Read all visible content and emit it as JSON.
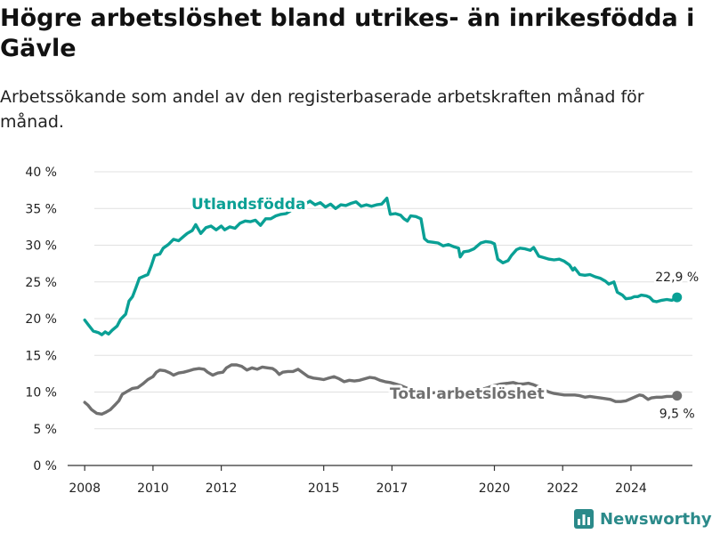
{
  "title": "Högre arbetslöshet bland utrikes- än inrikesfödda i Gävle",
  "subtitle": "Arbetssökande som andel av den registerbaserade arbetskraften månad för månad.",
  "brand": "Newsworthy",
  "colors": {
    "foreign": "#0aa095",
    "total": "#707070",
    "grid": "#e0e0e0",
    "axis": "#333333"
  },
  "chart_data": {
    "type": "line",
    "ylim": [
      0,
      40
    ],
    "xlim": [
      2007.5,
      2025.8
    ],
    "y_ticks": [
      {
        "value": 0,
        "label": "0 %"
      },
      {
        "value": 5,
        "label": "5 %"
      },
      {
        "value": 10,
        "label": "10 %"
      },
      {
        "value": 15,
        "label": "15 %"
      },
      {
        "value": 20,
        "label": "20 %"
      },
      {
        "value": 25,
        "label": "25 %"
      },
      {
        "value": 30,
        "label": "30 %"
      },
      {
        "value": 35,
        "label": "35 %"
      },
      {
        "value": 40,
        "label": "40 %"
      }
    ],
    "x_ticks": [
      {
        "value": 2008,
        "label": "2008"
      },
      {
        "value": 2010,
        "label": "2010"
      },
      {
        "value": 2012,
        "label": "2012"
      },
      {
        "value": 2015,
        "label": "2015"
      },
      {
        "value": 2017,
        "label": "2017"
      },
      {
        "value": 2020,
        "label": "2020"
      },
      {
        "value": 2022,
        "label": "2022"
      },
      {
        "value": 2024,
        "label": "2024"
      }
    ],
    "series": [
      {
        "name": "Utlandsfödda",
        "color": "#0aa095",
        "end_label": "22,9 %",
        "points": [
          [
            2008.0,
            19.8
          ],
          [
            2008.1,
            19.2
          ],
          [
            2008.25,
            18.3
          ],
          [
            2008.4,
            18.1
          ],
          [
            2008.5,
            17.8
          ],
          [
            2008.6,
            18.2
          ],
          [
            2008.7,
            17.9
          ],
          [
            2008.8,
            18.4
          ],
          [
            2008.95,
            19.0
          ],
          [
            2009.05,
            19.9
          ],
          [
            2009.2,
            20.6
          ],
          [
            2009.3,
            22.4
          ],
          [
            2009.4,
            23.0
          ],
          [
            2009.5,
            24.2
          ],
          [
            2009.6,
            25.5
          ],
          [
            2009.75,
            25.8
          ],
          [
            2009.85,
            26.0
          ],
          [
            2009.95,
            27.2
          ],
          [
            2010.05,
            28.6
          ],
          [
            2010.2,
            28.8
          ],
          [
            2010.3,
            29.6
          ],
          [
            2010.45,
            30.1
          ],
          [
            2010.6,
            30.8
          ],
          [
            2010.75,
            30.6
          ],
          [
            2010.9,
            31.2
          ],
          [
            2011.0,
            31.6
          ],
          [
            2011.15,
            32.0
          ],
          [
            2011.25,
            32.8
          ],
          [
            2011.4,
            31.6
          ],
          [
            2011.55,
            32.4
          ],
          [
            2011.7,
            32.6
          ],
          [
            2011.85,
            32.1
          ],
          [
            2012.0,
            32.6
          ],
          [
            2012.1,
            32.1
          ],
          [
            2012.25,
            32.5
          ],
          [
            2012.4,
            32.3
          ],
          [
            2012.55,
            33.0
          ],
          [
            2012.7,
            33.3
          ],
          [
            2012.85,
            33.2
          ],
          [
            2013.0,
            33.4
          ],
          [
            2013.15,
            32.7
          ],
          [
            2013.3,
            33.6
          ],
          [
            2013.45,
            33.6
          ],
          [
            2013.6,
            34.0
          ],
          [
            2013.75,
            34.2
          ],
          [
            2013.9,
            34.3
          ],
          [
            2014.0,
            34.6
          ],
          [
            2014.15,
            35.1
          ],
          [
            2014.3,
            35.8
          ],
          [
            2014.45,
            35.6
          ],
          [
            2014.6,
            36.0
          ],
          [
            2014.75,
            35.5
          ],
          [
            2014.9,
            35.8
          ],
          [
            2015.05,
            35.2
          ],
          [
            2015.2,
            35.6
          ],
          [
            2015.35,
            35.0
          ],
          [
            2015.5,
            35.5
          ],
          [
            2015.65,
            35.4
          ],
          [
            2015.8,
            35.7
          ],
          [
            2015.95,
            35.9
          ],
          [
            2016.1,
            35.3
          ],
          [
            2016.25,
            35.5
          ],
          [
            2016.4,
            35.3
          ],
          [
            2016.55,
            35.5
          ],
          [
            2016.7,
            35.6
          ],
          [
            2016.85,
            36.4
          ],
          [
            2016.95,
            34.2
          ],
          [
            2017.1,
            34.3
          ],
          [
            2017.25,
            34.1
          ],
          [
            2017.35,
            33.6
          ],
          [
            2017.45,
            33.3
          ],
          [
            2017.55,
            34.0
          ],
          [
            2017.7,
            33.9
          ],
          [
            2017.85,
            33.6
          ],
          [
            2017.95,
            30.9
          ],
          [
            2018.05,
            30.5
          ],
          [
            2018.2,
            30.4
          ],
          [
            2018.35,
            30.3
          ],
          [
            2018.5,
            29.9
          ],
          [
            2018.65,
            30.1
          ],
          [
            2018.8,
            29.8
          ],
          [
            2018.95,
            29.6
          ],
          [
            2019.0,
            28.4
          ],
          [
            2019.1,
            29.1
          ],
          [
            2019.25,
            29.2
          ],
          [
            2019.4,
            29.5
          ],
          [
            2019.5,
            29.9
          ],
          [
            2019.6,
            30.3
          ],
          [
            2019.75,
            30.5
          ],
          [
            2019.9,
            30.4
          ],
          [
            2020.0,
            30.2
          ],
          [
            2020.1,
            28.1
          ],
          [
            2020.25,
            27.6
          ],
          [
            2020.4,
            27.9
          ],
          [
            2020.5,
            28.6
          ],
          [
            2020.65,
            29.4
          ],
          [
            2020.75,
            29.6
          ],
          [
            2020.9,
            29.5
          ],
          [
            2021.05,
            29.3
          ],
          [
            2021.15,
            29.7
          ],
          [
            2021.3,
            28.5
          ],
          [
            2021.45,
            28.3
          ],
          [
            2021.6,
            28.1
          ],
          [
            2021.75,
            28.0
          ],
          [
            2021.9,
            28.1
          ],
          [
            2022.05,
            27.8
          ],
          [
            2022.2,
            27.3
          ],
          [
            2022.3,
            26.6
          ],
          [
            2022.35,
            26.9
          ],
          [
            2022.5,
            26.0
          ],
          [
            2022.65,
            25.9
          ],
          [
            2022.8,
            26.0
          ],
          [
            2022.95,
            25.7
          ],
          [
            2023.1,
            25.5
          ],
          [
            2023.25,
            25.1
          ],
          [
            2023.35,
            24.7
          ],
          [
            2023.5,
            25.0
          ],
          [
            2023.6,
            23.6
          ],
          [
            2023.75,
            23.2
          ],
          [
            2023.85,
            22.7
          ],
          [
            2024.0,
            22.8
          ],
          [
            2024.1,
            23.0
          ],
          [
            2024.2,
            23.0
          ],
          [
            2024.3,
            23.2
          ],
          [
            2024.45,
            23.1
          ],
          [
            2024.55,
            22.9
          ],
          [
            2024.65,
            22.4
          ],
          [
            2024.75,
            22.3
          ],
          [
            2024.9,
            22.5
          ],
          [
            2025.05,
            22.6
          ],
          [
            2025.2,
            22.5
          ],
          [
            2025.35,
            22.9
          ]
        ]
      },
      {
        "name": "Total arbetslöshet",
        "color": "#707070",
        "end_label": "9,5 %",
        "points": [
          [
            2008.0,
            8.6
          ],
          [
            2008.1,
            8.2
          ],
          [
            2008.2,
            7.6
          ],
          [
            2008.35,
            7.1
          ],
          [
            2008.5,
            7.0
          ],
          [
            2008.6,
            7.2
          ],
          [
            2008.75,
            7.6
          ],
          [
            2008.9,
            8.3
          ],
          [
            2009.0,
            8.8
          ],
          [
            2009.1,
            9.7
          ],
          [
            2009.25,
            10.1
          ],
          [
            2009.4,
            10.5
          ],
          [
            2009.55,
            10.6
          ],
          [
            2009.7,
            11.1
          ],
          [
            2009.85,
            11.7
          ],
          [
            2010.0,
            12.1
          ],
          [
            2010.1,
            12.7
          ],
          [
            2010.2,
            13.0
          ],
          [
            2010.35,
            12.9
          ],
          [
            2010.5,
            12.6
          ],
          [
            2010.6,
            12.3
          ],
          [
            2010.75,
            12.6
          ],
          [
            2010.9,
            12.7
          ],
          [
            2011.05,
            12.9
          ],
          [
            2011.2,
            13.1
          ],
          [
            2011.35,
            13.2
          ],
          [
            2011.5,
            13.1
          ],
          [
            2011.6,
            12.7
          ],
          [
            2011.75,
            12.3
          ],
          [
            2011.9,
            12.6
          ],
          [
            2012.05,
            12.7
          ],
          [
            2012.15,
            13.3
          ],
          [
            2012.3,
            13.7
          ],
          [
            2012.45,
            13.7
          ],
          [
            2012.6,
            13.5
          ],
          [
            2012.75,
            13.0
          ],
          [
            2012.9,
            13.3
          ],
          [
            2013.05,
            13.1
          ],
          [
            2013.2,
            13.4
          ],
          [
            2013.35,
            13.3
          ],
          [
            2013.5,
            13.2
          ],
          [
            2013.6,
            12.9
          ],
          [
            2013.7,
            12.4
          ],
          [
            2013.8,
            12.7
          ],
          [
            2013.95,
            12.8
          ],
          [
            2014.1,
            12.8
          ],
          [
            2014.25,
            13.1
          ],
          [
            2014.4,
            12.6
          ],
          [
            2014.55,
            12.1
          ],
          [
            2014.7,
            11.9
          ],
          [
            2014.85,
            11.8
          ],
          [
            2015.0,
            11.7
          ],
          [
            2015.15,
            11.9
          ],
          [
            2015.3,
            12.1
          ],
          [
            2015.45,
            11.8
          ],
          [
            2015.6,
            11.4
          ],
          [
            2015.75,
            11.6
          ],
          [
            2015.9,
            11.5
          ],
          [
            2016.05,
            11.6
          ],
          [
            2016.2,
            11.8
          ],
          [
            2016.35,
            12.0
          ],
          [
            2016.5,
            11.9
          ],
          [
            2016.65,
            11.6
          ],
          [
            2016.8,
            11.4
          ],
          [
            2016.95,
            11.3
          ],
          [
            2017.1,
            11.1
          ],
          [
            2017.25,
            10.9
          ],
          [
            2017.4,
            10.6
          ],
          [
            2017.55,
            10.4
          ],
          [
            2017.7,
            10.2
          ],
          [
            2017.85,
            10.1
          ],
          [
            2018.0,
            10.0
          ],
          [
            2018.2,
            9.9
          ],
          [
            2018.4,
            9.9
          ],
          [
            2018.6,
            9.8
          ],
          [
            2018.8,
            9.8
          ],
          [
            2019.0,
            9.9
          ],
          [
            2019.2,
            10.0
          ],
          [
            2019.4,
            10.1
          ],
          [
            2019.6,
            10.3
          ],
          [
            2019.8,
            10.6
          ],
          [
            2020.0,
            10.9
          ],
          [
            2020.2,
            11.1
          ],
          [
            2020.4,
            11.2
          ],
          [
            2020.55,
            11.3
          ],
          [
            2020.7,
            11.1
          ],
          [
            2020.85,
            11.1
          ],
          [
            2021.0,
            11.2
          ],
          [
            2021.15,
            11.0
          ],
          [
            2021.3,
            10.7
          ],
          [
            2021.45,
            10.3
          ],
          [
            2021.6,
            10.0
          ],
          [
            2021.75,
            9.8
          ],
          [
            2021.9,
            9.7
          ],
          [
            2022.05,
            9.6
          ],
          [
            2022.2,
            9.6
          ],
          [
            2022.35,
            9.6
          ],
          [
            2022.5,
            9.5
          ],
          [
            2022.65,
            9.3
          ],
          [
            2022.8,
            9.4
          ],
          [
            2022.95,
            9.3
          ],
          [
            2023.1,
            9.2
          ],
          [
            2023.25,
            9.1
          ],
          [
            2023.4,
            9.0
          ],
          [
            2023.55,
            8.7
          ],
          [
            2023.7,
            8.7
          ],
          [
            2023.85,
            8.8
          ],
          [
            2024.0,
            9.1
          ],
          [
            2024.15,
            9.4
          ],
          [
            2024.25,
            9.6
          ],
          [
            2024.35,
            9.5
          ],
          [
            2024.5,
            9.0
          ],
          [
            2024.6,
            9.2
          ],
          [
            2024.75,
            9.3
          ],
          [
            2024.9,
            9.3
          ],
          [
            2025.05,
            9.4
          ],
          [
            2025.2,
            9.4
          ],
          [
            2025.35,
            9.5
          ]
        ]
      }
    ]
  }
}
